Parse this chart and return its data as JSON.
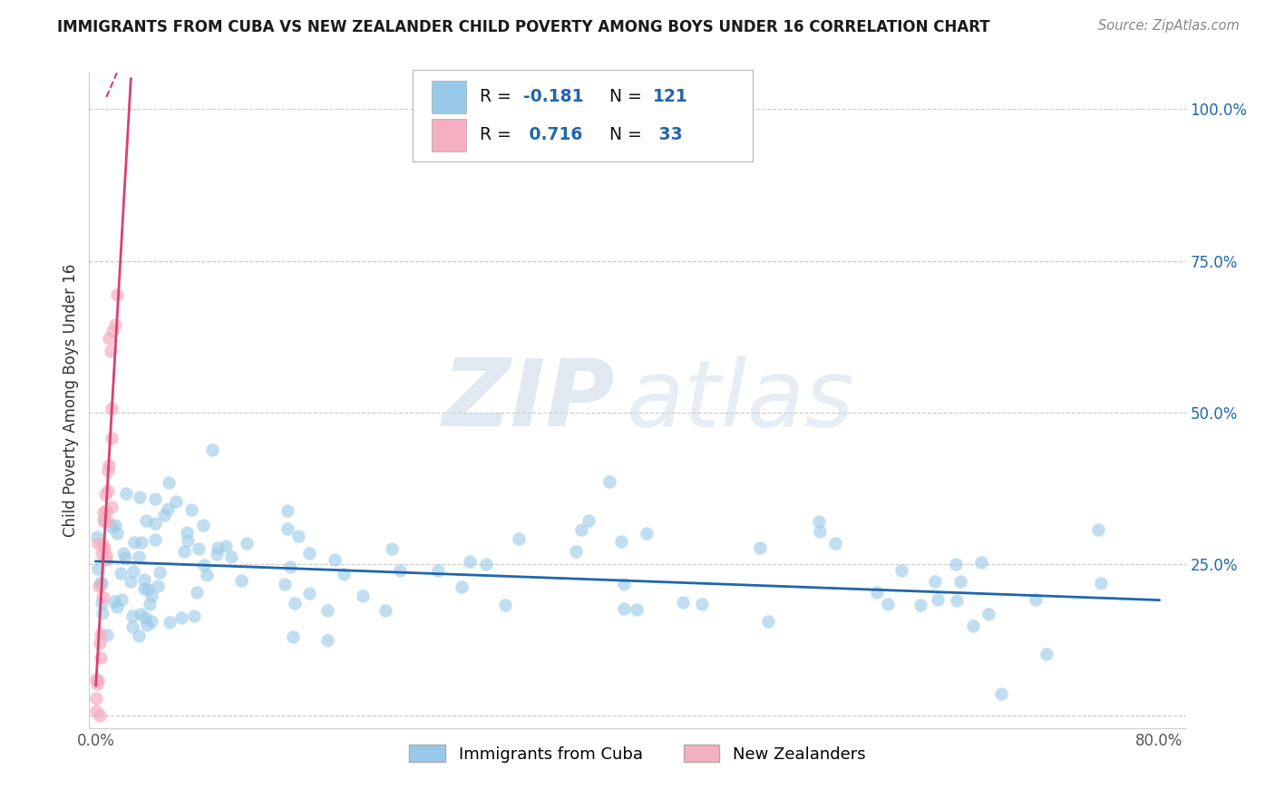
{
  "title": "IMMIGRANTS FROM CUBA VS NEW ZEALANDER CHILD POVERTY AMONG BOYS UNDER 16 CORRELATION CHART",
  "source": "Source: ZipAtlas.com",
  "ylabel": "Child Poverty Among Boys Under 16",
  "blue_color": "#99c9e8",
  "pink_color": "#f4afc0",
  "blue_line_color": "#2166ac",
  "pink_line_color": "#d94070",
  "text_dark": "#1a1a2e",
  "text_blue": "#2166ac",
  "text_pink": "#d94070",
  "grid_color": "#c8c8c8",
  "bg_color": "#ffffff",
  "label_blue": "Immigrants from Cuba",
  "label_pink": "New Zealanders",
  "R_blue": "-0.181",
  "N_blue": "121",
  "R_pink": "0.716",
  "N_pink": "33"
}
